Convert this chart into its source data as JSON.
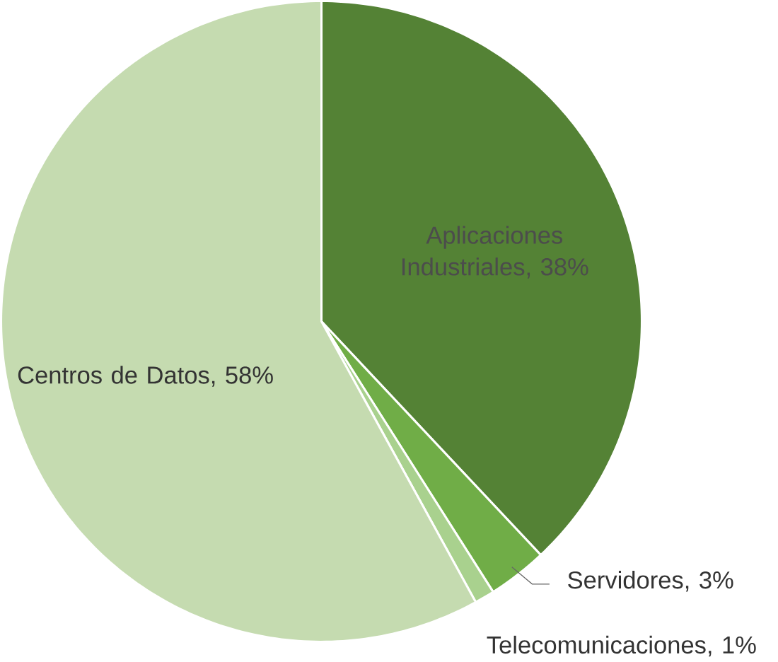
{
  "chart_data": {
    "type": "pie",
    "categories": [
      "Aplicaciones Industriales, 38%",
      "Servidores, 3%",
      "Telecomunicaciones, 1%",
      "Centros de Datos, 58%"
    ],
    "values": [
      38,
      3,
      1,
      58
    ],
    "colors": [
      "#548235",
      "#70ad47",
      "#a9d18e",
      "#c5dbb0"
    ]
  }
}
